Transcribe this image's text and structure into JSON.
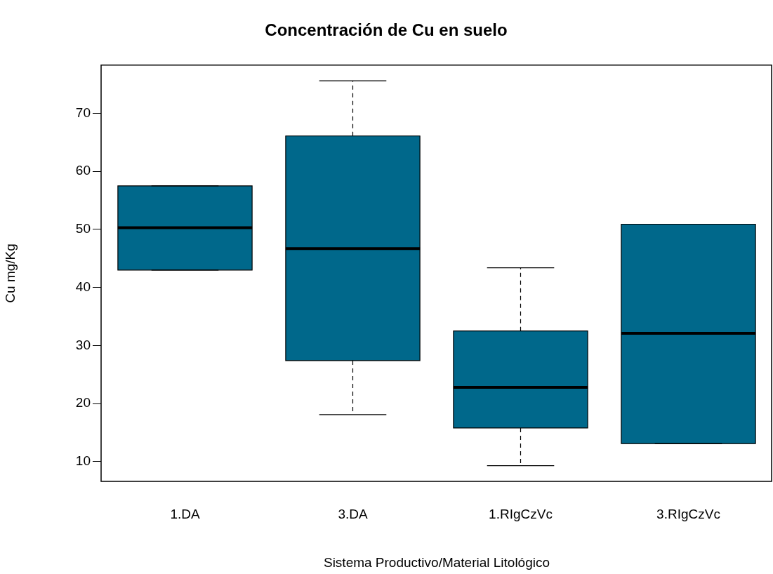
{
  "chart_data": {
    "type": "box",
    "title": "Concentración de Cu en suelo",
    "xlabel": "Sistema Productivo/Material Litológico",
    "ylabel": "Cu mg/Kg",
    "categories": [
      "1.DA",
      "3.DA",
      "1.RIgCzVc",
      "3.RIgCzVc"
    ],
    "color": "#00688b",
    "boxes": [
      {
        "low": 43.0,
        "q1": 43.0,
        "median": 50.3,
        "q3": 57.5,
        "high": 57.5
      },
      {
        "low": 18.1,
        "q1": 27.4,
        "median": 46.7,
        "q3": 66.1,
        "high": 75.6
      },
      {
        "low": 9.3,
        "q1": 15.8,
        "median": 22.8,
        "q3": 32.5,
        "high": 43.4
      },
      {
        "low": 13.1,
        "q1": 13.1,
        "median": 32.1,
        "q3": 50.9,
        "high": 50.9
      }
    ],
    "ylim": [
      6.6,
      78.3
    ],
    "yticks": [
      10,
      20,
      30,
      40,
      50,
      60,
      70
    ]
  }
}
